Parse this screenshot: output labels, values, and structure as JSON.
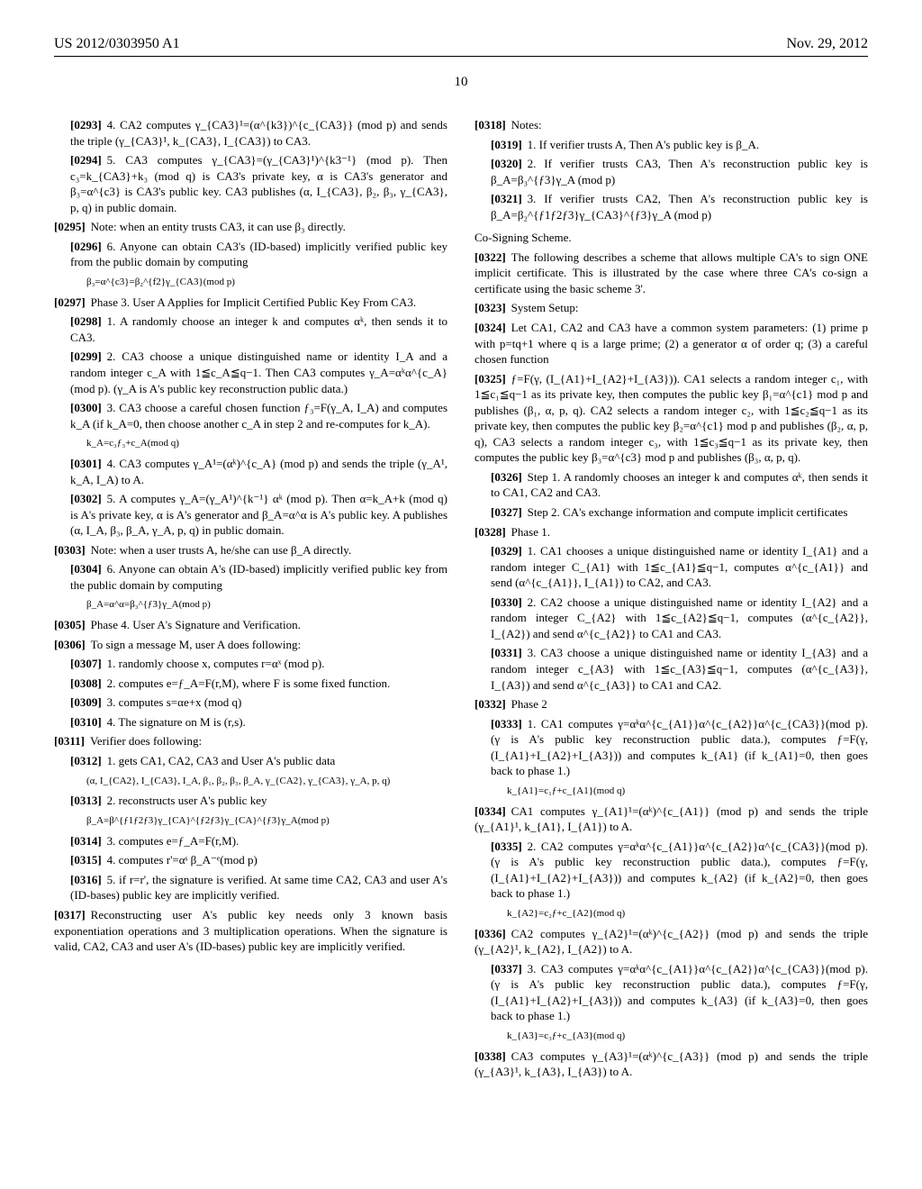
{
  "header": {
    "left": "US 2012/0303950 A1",
    "right": "Nov. 29, 2012"
  },
  "page_number": "10",
  "left_col": {
    "p0293": "4. CA2 computes γ_{CA3}¹=(α^{k3})^{c_{CA3}} (mod p) and sends the triple (γ_{CA3}¹, k_{CA3}, I_{CA3}) to CA3.",
    "p0294": "5. CA3 computes γ_{CA3}=(γ_{CA3}¹)^{k3⁻¹} (mod p). Then c₃=k_{CA3}+k₃ (mod q) is CA3's private key, α is CA3's generator and β₃=α^{c3} is CA3's public key. CA3 publishes (α, I_{CA3}, β₂, β₃, γ_{CA3}, p, q) in public domain.",
    "p0295": "Note: when an entity trusts CA3, it can use β₃ directly.",
    "p0296": "6. Anyone can obtain CA3's (ID-based) implicitly verified public key from the public domain by computing",
    "f0296": "β₃=α^{c3}=β₂^{f2}γ_{CA3}(mod p)",
    "p0297": "Phase 3. User A Applies for Implicit Certified Public Key From CA3.",
    "p0298": "1. A randomly choose an integer k and computes αᵏ, then sends it to CA3.",
    "p0299": "2. CA3 choose a unique distinguished name or identity I_A and a random integer c_A with 1≦c_A≦q−1. Then CA3 computes γ_A=αᵏα^{c_A} (mod p). (γ_A is A's public key reconstruction public data.)",
    "p0300": "3. CA3 choose a careful chosen function ƒ₃=F(γ_A, I_A) and computes k_A (if k_A=0, then choose another c_A in step 2 and re-computes for k_A).",
    "f0300": "k_A=c₃ƒ₃+c_A(mod q)",
    "p0301": "4. CA3 computes γ_A¹=(αᵏ)^{c_A} (mod p) and sends the triple (γ_A¹, k_A, I_A) to A.",
    "p0302": "5. A computes γ_A=(γ_A¹)^{k⁻¹} αᵏ (mod p). Then α=k_A+k (mod q) is A's private key, α is A's generator and β_A=α^α is A's public key. A publishes (α, I_A, β₃, β_A, γ_A, p, q) in public domain.",
    "p0303": "Note: when a user trusts A, he/she can use β_A directly.",
    "p0304": "6. Anyone can obtain A's (ID-based) implicitly verified public key from the public domain by computing",
    "f0304": "β_A=α^α=β₃^{ƒ3}γ_A(mod p)",
    "p0305": "Phase 4. User A's Signature and Verification.",
    "p0306": "To sign a message M, user A does following:",
    "p0307": "1. randomly choose x, computes r=αˣ (mod p).",
    "p0308": "2. computes e=ƒ_A=F(r,M), where F is some fixed function.",
    "p0309": "3. computes s=αe+x (mod q)",
    "p0310": "4. The signature on M is (r,s).",
    "p0311": "Verifier does following:",
    "p0312": "1. gets CA1, CA2, CA3 and User A's public data",
    "f0312": "(α, I_{CA2}, I_{CA3}, I_A, β₁, β₂, β₃, β_A, γ_{CA2}, γ_{CA3}, γ_A, p, q)",
    "p0313": "2. reconstructs user A's public key",
    "f0313": "β_A=β^{ƒ1ƒ2ƒ3}γ_{CA}^{ƒ2ƒ3}γ_{CA}^{ƒ3}γ_A(mod p)",
    "p0314": "3. computes e=ƒ_A=F(r,M).",
    "p0315": "4. computes r'=αˢ β_A⁻ᵉ(mod p)",
    "p0316": "5. if r=r', the signature is verified. At same time CA2, CA3 and user A's (ID-bases) public key are implicitly verified.",
    "p0317": "Reconstructing user A's public key needs only 3 known basis exponentiation operations and 3 multiplication operations. When the signature is valid, CA2, CA3 and user A's (ID-bases) public key are implicitly verified."
  },
  "right_col": {
    "p0318": "Notes:",
    "p0319": "1. If verifier trusts A, Then A's public key is β_A.",
    "p0320": "2. If verifier trusts CA3, Then A's reconstruction public key is β_A=β₃^{ƒ3}γ_A (mod p)",
    "p0321": "3. If verifier trusts CA2, Then A's reconstruction public key is β_A=β₂^{ƒ1ƒ2ƒ3}γ_{CA3}^{ƒ3}γ_A (mod p)",
    "cosign_head": "Co-Signing Scheme.",
    "p0322": "The following describes a scheme that allows multiple CA's to sign ONE implicit certificate. This is illustrated by the case where three CA's co-sign a certificate using the basic scheme 3'.",
    "p0323": "System Setup:",
    "p0324": "Let CA1, CA2 and CA3 have a common system parameters: (1) prime p with p=tq+1 where q is a large prime; (2) a generator α of order q; (3) a careful chosen function",
    "p0325": "ƒ=F(γ, (I_{A1}+I_{A2}+I_{A3})). CA1 selects a random integer c₁, with 1≦c₁≦q−1 as its private key, then computes the public key β₁=α^{c1} mod p and publishes (β₁, α, p, q). CA2 selects a random integer c₂, with 1≦c₂≦q−1 as its private key, then computes the public key β₂=α^{c1} mod p and publishes (β₂, α, p, q), CA3 selects a random integer c₃, with 1≦c₃≦q−1 as its private key, then computes the public key β₃=α^{c3} mod p and publishes (β₃, α, p, q).",
    "p0326": "Step 1. A randomly chooses an integer k and computes αᵏ, then sends it to CA1, CA2 and CA3.",
    "p0327": "Step 2. CA's exchange information and compute implicit certificates",
    "p0328": "Phase 1.",
    "p0329": "1. CA1 chooses a unique distinguished name or identity I_{A1} and a random integer C_{A1} with 1≦c_{A1}≦q−1, computes α^{c_{A1}} and send (α^{c_{A1}}, I_{A1}) to CA2, and CA3.",
    "p0330": "2. CA2 choose a unique distinguished name or identity I_{A2} and a random integer C_{A2} with 1≦c_{A2}≦q−1, computes (α^{c_{A2}}, I_{A2}) and send α^{c_{A2}} to CA1 and CA3.",
    "p0331": "3. CA3 choose a unique distinguished name or identity I_{A3} and a random integer c_{A3} with 1≦c_{A3}≦q−1, computes (α^{c_{A3}}, I_{A3}) and send α^{c_{A3}} to CA1 and CA2.",
    "p0332": "Phase 2",
    "p0333": "1. CA1 computes γ=αᵏα^{c_{A1}}α^{c_{A2}}α^{c_{CA3}}(mod p). (γ is A's public key reconstruction public data.), computes ƒ=F(γ, (I_{A1}+I_{A2}+I_{A3})) and computes k_{A1} (if k_{A1}=0, then goes back to phase 1.)",
    "f0333": "k_{A1}=c₁ƒ+c_{A1}(mod q)",
    "p0334": "CA1 computes γ_{A1}¹=(αᵏ)^{c_{A1}} (mod p) and sends the triple (γ_{A1}¹, k_{A1}, I_{A1}) to A.",
    "p0335": "2. CA2 computes γ=αᵏα^{c_{A1}}α^{c_{A2}}α^{c_{CA3}}(mod p). (γ is A's public key reconstruction public data.), computes ƒ=F(γ, (I_{A1}+I_{A2}+I_{A3})) and computes k_{A2} (if k_{A2}=0, then goes back to phase 1.)",
    "f0335": "k_{A2}=c₂ƒ+c_{A2}(mod q)",
    "p0336": "CA2 computes γ_{A2}¹=(αᵏ)^{c_{A2}} (mod p) and sends the triple (γ_{A2}¹, k_{A2}, I_{A2}) to A.",
    "p0337": "3. CA3 computes γ=αᵏα^{c_{A1}}α^{c_{A2}}α^{c_{CA3}}(mod p). (γ is A's public key reconstruction public data.), computes ƒ=F(γ,(I_{A1}+I_{A2}+I_{A3})) and computes k_{A3} (if k_{A3}=0, then goes back to phase 1.)",
    "f0337": "k_{A3}=c₃ƒ+c_{A3}(mod q)",
    "p0338": "CA3 computes γ_{A3}¹=(αᵏ)^{c_{A3}} (mod p) and sends the triple (γ_{A3}¹, k_{A3}, I_{A3}) to A."
  }
}
